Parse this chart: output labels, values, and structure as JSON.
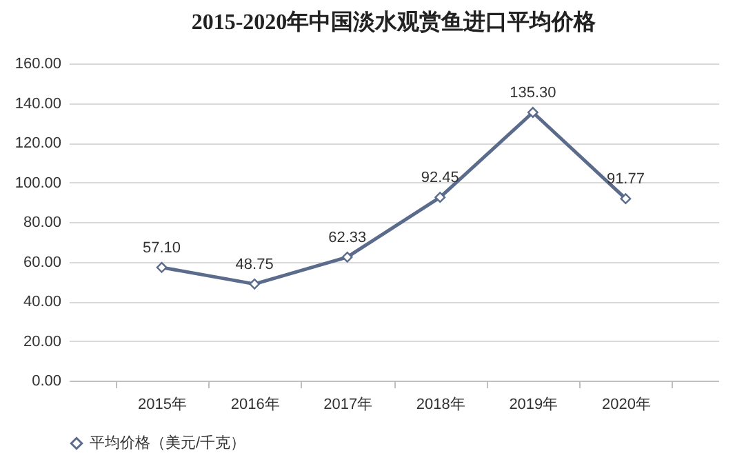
{
  "chart_data": {
    "type": "line",
    "title": "2015-2020年中国淡水观赏鱼进口平均价格",
    "categories": [
      "2015年",
      "2016年",
      "2017年",
      "2018年",
      "2019年",
      "2020年"
    ],
    "series": [
      {
        "name": "平均价格（美元/千克）",
        "color": "#5b6b8c",
        "values": [
          57.1,
          48.75,
          62.33,
          92.45,
          135.3,
          91.77
        ],
        "value_labels": [
          "57.10",
          "48.75",
          "62.33",
          "92.45",
          "135.30",
          "91.77"
        ]
      }
    ],
    "ylim": [
      0,
      160
    ],
    "yticks": [
      {
        "value": 0,
        "label": "0.00"
      },
      {
        "value": 20,
        "label": "20.00"
      },
      {
        "value": 40,
        "label": "40.00"
      },
      {
        "value": 60,
        "label": "60.00"
      },
      {
        "value": 80,
        "label": "80.00"
      },
      {
        "value": 100,
        "label": "100.00"
      },
      {
        "value": 120,
        "label": "120.00"
      },
      {
        "value": 140,
        "label": "140.00"
      },
      {
        "value": 160,
        "label": "160.00"
      }
    ],
    "grid": "y",
    "legend": "bottom",
    "marker": "diamond",
    "line_style": "solid"
  }
}
